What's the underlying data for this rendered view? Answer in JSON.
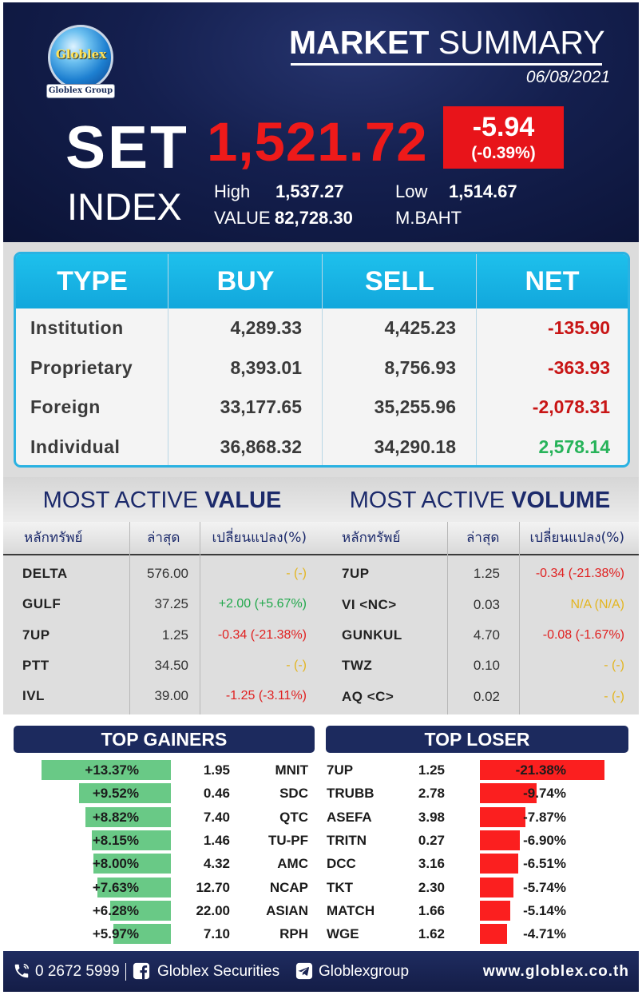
{
  "header": {
    "logo_text": "Globlex",
    "logo_group": "Globlex Group",
    "title_bold": "MARKET",
    "title_rest": "SUMMARY",
    "date": "06/08/2021",
    "set_label": "SET",
    "index_label": "INDEX",
    "index_value": "1,521.72",
    "change": "-5.94",
    "change_pct": "(-0.39%)",
    "high_label": "High",
    "high_value": "1,537.27",
    "low_label": "Low",
    "low_value": "1,514.67",
    "value_label": "VALUE",
    "value_amount": "82,728.30",
    "value_unit": "M.BAHT",
    "colors": {
      "index_red": "#ee1a1a",
      "change_box": "#e8141a"
    }
  },
  "net_table": {
    "headers": [
      "TYPE",
      "BUY",
      "SELL",
      "NET"
    ],
    "rows": [
      {
        "type": "Institution",
        "buy": "4,289.33",
        "sell": "4,425.23",
        "net": "-135.90",
        "sign": "neg"
      },
      {
        "type": "Proprietary",
        "buy": "8,393.01",
        "sell": "8,756.93",
        "net": "-363.93",
        "sign": "neg"
      },
      {
        "type": "Foreign",
        "buy": "33,177.65",
        "sell": "35,255.96",
        "net": "-2,078.31",
        "sign": "neg"
      },
      {
        "type": "Individual",
        "buy": "36,868.32",
        "sell": "34,290.18",
        "net": "2,578.14",
        "sign": "pos"
      }
    ]
  },
  "most_active_value": {
    "title_rest": "MOST ACTIVE",
    "title_bold": "VALUE",
    "col_symbol": "หลักทรัพย์",
    "col_last": "ล่าสุด",
    "col_change": "เปลี่ยนแปลง(%)",
    "rows": [
      {
        "symbol": "DELTA",
        "last": "576.00",
        "change": "- (-)",
        "sign": "neu"
      },
      {
        "symbol": "GULF",
        "last": "37.25",
        "change": "+2.00 (+5.67%)",
        "sign": "pos"
      },
      {
        "symbol": "7UP",
        "last": "1.25",
        "change": "-0.34 (-21.38%)",
        "sign": "neg"
      },
      {
        "symbol": "PTT",
        "last": "34.50",
        "change": "- (-)",
        "sign": "neu"
      },
      {
        "symbol": "IVL",
        "last": "39.00",
        "change": "-1.25 (-3.11%)",
        "sign": "neg"
      }
    ]
  },
  "most_active_volume": {
    "title_rest": "MOST ACTIVE",
    "title_bold": "VOLUME",
    "col_symbol": "หลักทรัพย์",
    "col_last": "ล่าสุด",
    "col_change": "เปลี่ยนแปลง(%)",
    "rows": [
      {
        "symbol": "7UP",
        "last": "1.25",
        "change": "-0.34 (-21.38%)",
        "sign": "neg"
      },
      {
        "symbol": "VI <NC>",
        "last": "0.03",
        "change": "N/A (N/A)",
        "sign": "neu"
      },
      {
        "symbol": "GUNKUL",
        "last": "4.70",
        "change": "-0.08 (-1.67%)",
        "sign": "neg"
      },
      {
        "symbol": "TWZ",
        "last": "0.10",
        "change": "- (-)",
        "sign": "neu"
      },
      {
        "symbol": "AQ <C>",
        "last": "0.02",
        "change": "- (-)",
        "sign": "neu"
      }
    ]
  },
  "top_gainers": {
    "title": "TOP GAINERS",
    "rows": [
      {
        "pct": "+13.37%",
        "pct_value": 13.37,
        "last": "1.95",
        "symbol": "MNIT"
      },
      {
        "pct": "+9.52%",
        "pct_value": 9.52,
        "last": "0.46",
        "symbol": "SDC"
      },
      {
        "pct": "+8.82%",
        "pct_value": 8.82,
        "last": "7.40",
        "symbol": "QTC"
      },
      {
        "pct": "+8.15%",
        "pct_value": 8.15,
        "last": "1.46",
        "symbol": "TU-PF"
      },
      {
        "pct": "+8.00%",
        "pct_value": 8.0,
        "last": "4.32",
        "symbol": "AMC"
      },
      {
        "pct": "+7.63%",
        "pct_value": 7.63,
        "last": "12.70",
        "symbol": "NCAP"
      },
      {
        "pct": "+6.28%",
        "pct_value": 6.28,
        "last": "22.00",
        "symbol": "ASIAN"
      },
      {
        "pct": "+5.97%",
        "pct_value": 5.97,
        "last": "7.10",
        "symbol": "RPH"
      }
    ]
  },
  "top_loser": {
    "title": "TOP LOSER",
    "rows": [
      {
        "symbol": "7UP",
        "last": "1.25",
        "pct": "-21.38%",
        "pct_value": 21.38
      },
      {
        "symbol": "TRUBB",
        "last": "2.78",
        "pct": "-9.74%",
        "pct_value": 9.74
      },
      {
        "symbol": "ASEFA",
        "last": "3.98",
        "pct": "-7.87%",
        "pct_value": 7.87
      },
      {
        "symbol": "TRITN",
        "last": "0.27",
        "pct": "-6.90%",
        "pct_value": 6.9
      },
      {
        "symbol": "DCC",
        "last": "3.16",
        "pct": "-6.51%",
        "pct_value": 6.51
      },
      {
        "symbol": "TKT",
        "last": "2.30",
        "pct": "-5.74%",
        "pct_value": 5.74
      },
      {
        "symbol": "MATCH",
        "last": "1.66",
        "pct": "-5.14%",
        "pct_value": 5.14
      },
      {
        "symbol": "WGE",
        "last": "1.62",
        "pct": "-4.71%",
        "pct_value": 4.71
      }
    ]
  },
  "footer": {
    "phone": "0 2672 5999",
    "facebook": "Globlex Securities",
    "telegram": "Globlexgroup",
    "website": "www.globlex.co.th",
    "icons": [
      "phone-icon",
      "facebook-icon",
      "telegram-icon"
    ]
  }
}
